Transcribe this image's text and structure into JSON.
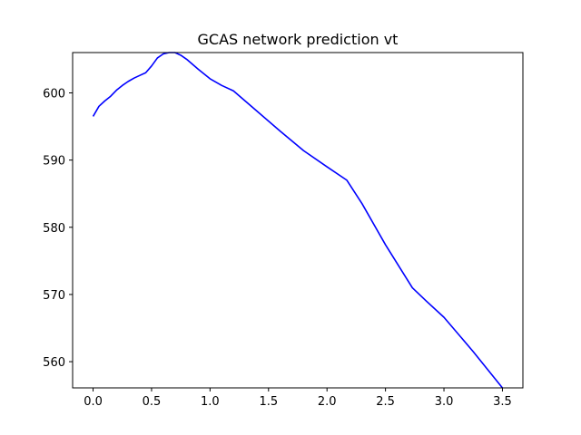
{
  "chart_data": {
    "type": "line",
    "title": "GCAS network prediction vt",
    "xlabel": "",
    "ylabel": "",
    "xlim": [
      -0.175,
      3.675
    ],
    "ylim": [
      556.1,
      606.0
    ],
    "grid": false,
    "x_ticks": [
      0.0,
      0.5,
      1.0,
      1.5,
      2.0,
      2.5,
      3.0,
      3.5
    ],
    "x_tick_labels": [
      "0.0",
      "0.5",
      "1.0",
      "1.5",
      "2.0",
      "2.5",
      "3.0",
      "3.5"
    ],
    "y_ticks": [
      560,
      570,
      580,
      590,
      600
    ],
    "y_tick_labels": [
      "560",
      "570",
      "580",
      "590",
      "600"
    ],
    "series": [
      {
        "color": "#0000ff",
        "x": [
          0.0,
          0.05,
          0.1,
          0.15,
          0.2,
          0.25,
          0.3,
          0.35,
          0.4,
          0.45,
          0.5,
          0.55,
          0.6,
          0.65,
          0.7,
          0.75,
          0.8,
          0.9,
          1.0,
          1.1,
          1.2,
          1.4,
          1.6,
          1.8,
          2.0,
          2.17,
          2.3,
          2.5,
          2.73,
          2.85,
          3.0,
          3.25,
          3.5
        ],
        "y": [
          596.5,
          598.0,
          598.8,
          599.5,
          600.4,
          601.1,
          601.7,
          602.2,
          602.6,
          603.0,
          604.0,
          605.2,
          605.8,
          606.0,
          606.0,
          605.6,
          605.0,
          603.5,
          602.1,
          601.1,
          600.3,
          597.3,
          594.3,
          591.4,
          589.0,
          587.0,
          583.5,
          577.4,
          571.0,
          569.0,
          566.6,
          561.5,
          556.1
        ]
      }
    ]
  }
}
